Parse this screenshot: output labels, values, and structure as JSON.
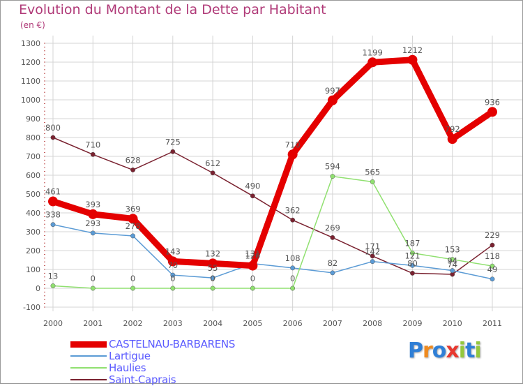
{
  "header": {
    "title": "Evolution du Montant de la Dette par Habitant",
    "subtitle": "(en €)"
  },
  "logo": {
    "text": "Proxiti"
  },
  "chart_data": {
    "type": "line",
    "title": "Evolution du Montant de la Dette par Habitant",
    "subtitle": "(en €)",
    "xlabel": "",
    "ylabel": "",
    "ylim": [
      -100,
      1300
    ],
    "yticks": [
      -100,
      0,
      100,
      200,
      300,
      400,
      500,
      600,
      700,
      800,
      900,
      1000,
      1100,
      1200,
      1300
    ],
    "grid": true,
    "legend_position": "bottom-left",
    "x": [
      "2000",
      "2001",
      "2002",
      "2003",
      "2004",
      "2005",
      "2006",
      "2007",
      "2008",
      "2009",
      "2010",
      "2011"
    ],
    "series": [
      {
        "name": "Saint-Caprais",
        "color": "#7a2230",
        "values": [
          800,
          710,
          628,
          725,
          612,
          490,
          362,
          269,
          171,
          80,
          74,
          229
        ],
        "labels": [
          "800",
          "710",
          "628",
          "725",
          "612",
          "490",
          "362",
          "269",
          "171",
          "80",
          "74",
          "229"
        ]
      },
      {
        "name": "Lartigue",
        "color": "#5b9bd5",
        "values": [
          338,
          293,
          278,
          70,
          55,
          131,
          108,
          82,
          142,
          121,
          94,
          49
        ],
        "labels": [
          "338",
          "293",
          "278",
          "70",
          "55",
          "131",
          "108",
          "82",
          "142",
          "121",
          "94",
          "49"
        ]
      },
      {
        "name": "Haulies",
        "color": "#90e070",
        "values": [
          13,
          0,
          0,
          0,
          0,
          0,
          0,
          594,
          565,
          187,
          153,
          118
        ],
        "labels": [
          "13",
          "0",
          "0",
          "0",
          "0",
          "0",
          "0",
          "594",
          "565",
          "187",
          "153",
          "118"
        ]
      },
      {
        "name": "CASTELNAU-BARBARENS",
        "color": "#e40000",
        "values": [
          461,
          393,
          369,
          143,
          132,
          120,
          710,
          997,
          1199,
          1212,
          792,
          936
        ],
        "labels": [
          "461",
          "393",
          "369",
          "143",
          "132",
          "120",
          "710",
          "997",
          "1199",
          "1212",
          "792",
          "936"
        ]
      }
    ],
    "legend_order": [
      "CASTELNAU-BARBARENS",
      "Lartigue",
      "Haulies",
      "Saint-Caprais"
    ]
  }
}
